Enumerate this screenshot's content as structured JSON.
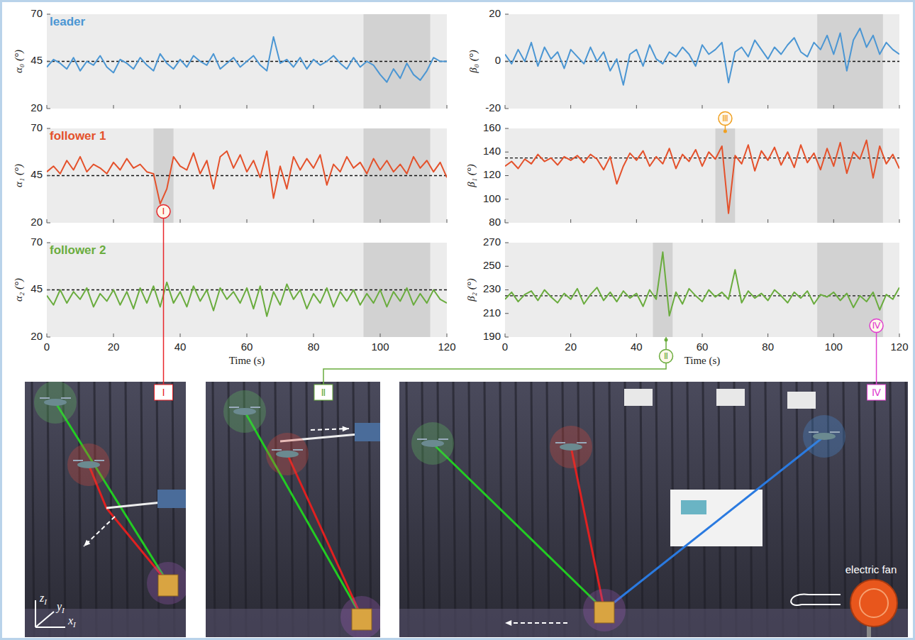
{
  "chart_data": [
    {
      "type": "line",
      "title": "leader",
      "ylabel": "α₀ (°)",
      "tick_labels": "y",
      "x": [
        0,
        2,
        4,
        6,
        8,
        10,
        12,
        14,
        16,
        18,
        20,
        22,
        24,
        26,
        28,
        30,
        32,
        34,
        36,
        38,
        40,
        42,
        44,
        46,
        48,
        50,
        52,
        54,
        56,
        58,
        60,
        62,
        64,
        66,
        68,
        70,
        72,
        74,
        76,
        78,
        80,
        82,
        84,
        86,
        88,
        90,
        92,
        94,
        96,
        98,
        100,
        102,
        104,
        106,
        108,
        110,
        112,
        114,
        116,
        118,
        120
      ],
      "xlim": [
        0,
        120
      ],
      "xticks": [
        0,
        20,
        40,
        60,
        80,
        100,
        120
      ],
      "ylim": [
        20,
        70
      ],
      "yticks": [
        20,
        45,
        70
      ],
      "reference": 45,
      "shaded": [
        [
          95,
          115
        ]
      ],
      "series": [
        {
          "color": "#4b96d3",
          "values": [
            42,
            46,
            44,
            41,
            47,
            40,
            45,
            43,
            48,
            42,
            39,
            46,
            44,
            41,
            47,
            43,
            40,
            49,
            44,
            41,
            46,
            42,
            48,
            45,
            43,
            49,
            41,
            44,
            47,
            42,
            45,
            48,
            43,
            40,
            58,
            44,
            46,
            42,
            47,
            41,
            46,
            43,
            45,
            48,
            44,
            41,
            47,
            42,
            45,
            43,
            38,
            34,
            41,
            36,
            44,
            38,
            35,
            40,
            47,
            45,
            45
          ]
        }
      ]
    },
    {
      "type": "line",
      "title": "follower 1",
      "ylabel": "α₁ (°)",
      "tick_labels": "y",
      "x": [
        0,
        2,
        4,
        6,
        8,
        10,
        12,
        14,
        16,
        18,
        20,
        22,
        24,
        26,
        28,
        30,
        32,
        34,
        36,
        38,
        40,
        42,
        44,
        46,
        48,
        50,
        52,
        54,
        56,
        58,
        60,
        62,
        64,
        66,
        68,
        70,
        72,
        74,
        76,
        78,
        80,
        82,
        84,
        86,
        88,
        90,
        92,
        94,
        96,
        98,
        100,
        102,
        104,
        106,
        108,
        110,
        112,
        114,
        116,
        118,
        120
      ],
      "xlim": [
        0,
        120
      ],
      "xticks": [
        0,
        20,
        40,
        60,
        80,
        100,
        120
      ],
      "ylim": [
        20,
        70
      ],
      "yticks": [
        20,
        45,
        70
      ],
      "reference": 45,
      "shaded": [
        [
          32,
          38
        ],
        [
          95,
          115
        ]
      ],
      "annotations": [
        {
          "text": "Ⅰ",
          "x": 35,
          "color": "#e8262b"
        }
      ],
      "series": [
        {
          "color": "#e4512b",
          "values": [
            47,
            50,
            46,
            53,
            48,
            55,
            47,
            51,
            49,
            46,
            52,
            48,
            54,
            49,
            51,
            47,
            46,
            30,
            38,
            55,
            50,
            48,
            57,
            46,
            53,
            38,
            55,
            58,
            49,
            56,
            47,
            53,
            44,
            58,
            33,
            50,
            38,
            55,
            48,
            54,
            49,
            56,
            40,
            51,
            47,
            55,
            49,
            52,
            46,
            54,
            48,
            53,
            47,
            51,
            46,
            55,
            49,
            53,
            47,
            52,
            44
          ]
        }
      ]
    },
    {
      "type": "line",
      "title": "follower 2",
      "ylabel": "α₂ (°)",
      "xlabel": "Time (s)",
      "x": [
        0,
        2,
        4,
        6,
        8,
        10,
        12,
        14,
        16,
        18,
        20,
        22,
        24,
        26,
        28,
        30,
        32,
        34,
        36,
        38,
        40,
        42,
        44,
        46,
        48,
        50,
        52,
        54,
        56,
        58,
        60,
        62,
        64,
        66,
        68,
        70,
        72,
        74,
        76,
        78,
        80,
        82,
        84,
        86,
        88,
        90,
        92,
        94,
        96,
        98,
        100,
        102,
        104,
        106,
        108,
        110,
        112,
        114,
        116,
        118,
        120
      ],
      "xlim": [
        0,
        120
      ],
      "xticks": [
        0,
        20,
        40,
        60,
        80,
        100,
        120
      ],
      "ylim": [
        20,
        70
      ],
      "yticks": [
        20,
        45,
        70
      ],
      "reference": 45,
      "shaded": [
        [
          95,
          115
        ]
      ],
      "series": [
        {
          "color": "#6aac3e",
          "values": [
            42,
            37,
            45,
            38,
            44,
            40,
            46,
            36,
            43,
            39,
            45,
            37,
            44,
            35,
            46,
            38,
            47,
            36,
            49,
            38,
            44,
            36,
            47,
            39,
            45,
            34,
            46,
            40,
            44,
            38,
            46,
            35,
            47,
            31,
            44,
            37,
            48,
            40,
            45,
            35,
            43,
            38,
            46,
            36,
            44,
            39,
            45,
            37,
            43,
            38,
            45,
            36,
            44,
            39,
            46,
            37,
            43,
            38,
            45,
            40,
            38
          ]
        }
      ]
    },
    {
      "type": "line",
      "ylabel": "β₀ (°)",
      "tick_labels": "y",
      "x": [
        0,
        2,
        4,
        6,
        8,
        10,
        12,
        14,
        16,
        18,
        20,
        22,
        24,
        26,
        28,
        30,
        32,
        34,
        36,
        38,
        40,
        42,
        44,
        46,
        48,
        50,
        52,
        54,
        56,
        58,
        60,
        62,
        64,
        66,
        68,
        70,
        72,
        74,
        76,
        78,
        80,
        82,
        84,
        86,
        88,
        90,
        92,
        94,
        96,
        98,
        100,
        102,
        104,
        106,
        108,
        110,
        112,
        114,
        116,
        118,
        120
      ],
      "xlim": [
        0,
        120
      ],
      "xticks": [
        0,
        20,
        40,
        60,
        80,
        100,
        120
      ],
      "ylim": [
        -20,
        20
      ],
      "yticks": [
        -20,
        0,
        20
      ],
      "reference": 0,
      "shaded": [
        [
          95,
          115
        ]
      ],
      "series": [
        {
          "color": "#4b96d3",
          "values": [
            3,
            -1,
            5,
            0,
            8,
            -2,
            6,
            1,
            4,
            -3,
            5,
            2,
            -1,
            6,
            0,
            4,
            -4,
            1,
            -10,
            3,
            5,
            -2,
            7,
            1,
            -1,
            4,
            2,
            6,
            3,
            -2,
            7,
            3,
            5,
            8,
            -9,
            4,
            6,
            2,
            9,
            5,
            1,
            6,
            3,
            7,
            10,
            4,
            2,
            8,
            5,
            11,
            3,
            12,
            -4,
            9,
            14,
            6,
            11,
            3,
            8,
            5,
            3
          ]
        }
      ]
    },
    {
      "type": "line",
      "ylabel": "β₁ (°)",
      "tick_labels": "y",
      "x": [
        0,
        2,
        4,
        6,
        8,
        10,
        12,
        14,
        16,
        18,
        20,
        22,
        24,
        26,
        28,
        30,
        32,
        34,
        36,
        38,
        40,
        42,
        44,
        46,
        48,
        50,
        52,
        54,
        56,
        58,
        60,
        62,
        64,
        66,
        68,
        70,
        72,
        74,
        76,
        78,
        80,
        82,
        84,
        86,
        88,
        90,
        92,
        94,
        96,
        98,
        100,
        102,
        104,
        106,
        108,
        110,
        112,
        114,
        116,
        118,
        120
      ],
      "xlim": [
        0,
        120
      ],
      "xticks": [
        0,
        20,
        40,
        60,
        80,
        100,
        120
      ],
      "ylim": [
        80,
        160
      ],
      "yticks": [
        80,
        100,
        120,
        140,
        160
      ],
      "reference": 135,
      "shaded": [
        [
          64,
          70
        ],
        [
          95,
          115
        ]
      ],
      "annotations": [
        {
          "text": "Ⅲ",
          "x": 67,
          "color": "#f0a020"
        }
      ],
      "series": [
        {
          "color": "#e4512b",
          "values": [
            128,
            132,
            126,
            134,
            130,
            138,
            132,
            135,
            129,
            136,
            133,
            137,
            131,
            138,
            134,
            125,
            136,
            113,
            128,
            139,
            133,
            141,
            128,
            136,
            130,
            143,
            126,
            138,
            132,
            142,
            128,
            140,
            134,
            145,
            88,
            137,
            130,
            146,
            124,
            141,
            133,
            144,
            129,
            140,
            127,
            146,
            131,
            139,
            125,
            143,
            128,
            148,
            122,
            140,
            134,
            150,
            118,
            145,
            130,
            138,
            126
          ]
        }
      ]
    },
    {
      "type": "line",
      "ylabel": "β₂ (°)",
      "xlabel": "Time (s)",
      "x": [
        0,
        2,
        4,
        6,
        8,
        10,
        12,
        14,
        16,
        18,
        20,
        22,
        24,
        26,
        28,
        30,
        32,
        34,
        36,
        38,
        40,
        42,
        44,
        46,
        48,
        50,
        52,
        54,
        56,
        58,
        60,
        62,
        64,
        66,
        68,
        70,
        72,
        74,
        76,
        78,
        80,
        82,
        84,
        86,
        88,
        90,
        92,
        94,
        96,
        98,
        100,
        102,
        104,
        106,
        108,
        110,
        112,
        114,
        116,
        118,
        120
      ],
      "xlim": [
        0,
        120
      ],
      "xticks": [
        0,
        20,
        40,
        60,
        80,
        100,
        120
      ],
      "ylim": [
        190,
        270
      ],
      "yticks": [
        190,
        210,
        230,
        250,
        270
      ],
      "reference": 225,
      "shaded": [
        [
          45,
          51
        ],
        [
          95,
          115
        ]
      ],
      "annotations": [
        {
          "text": "Ⅱ",
          "x": 49,
          "color": "#6aac3e"
        },
        {
          "text": "Ⅳ",
          "x": 113,
          "color": "#e040d0"
        }
      ],
      "series": [
        {
          "color": "#6aac3e",
          "values": [
            222,
            228,
            220,
            226,
            229,
            221,
            230,
            224,
            219,
            227,
            222,
            231,
            218,
            226,
            232,
            221,
            228,
            220,
            229,
            223,
            227,
            216,
            230,
            222,
            262,
            208,
            228,
            218,
            231,
            225,
            220,
            230,
            224,
            228,
            222,
            247,
            219,
            229,
            223,
            227,
            221,
            230,
            225,
            219,
            228,
            223,
            229,
            218,
            226,
            224,
            228,
            221,
            227,
            215,
            225,
            220,
            228,
            213,
            226,
            222,
            232
          ]
        }
      ]
    }
  ],
  "photos": [
    {
      "label": "Ⅰ",
      "color": "#e8262b",
      "axes": [
        {
          "base": "z",
          "sub": "I"
        },
        {
          "base": "y",
          "sub": "I"
        },
        {
          "base": "x",
          "sub": "I"
        }
      ]
    },
    {
      "label": "Ⅱ",
      "color": "#6aac3e"
    },
    {
      "label": "Ⅳ",
      "color": "#e040d0",
      "fan_label": "electric fan"
    }
  ]
}
